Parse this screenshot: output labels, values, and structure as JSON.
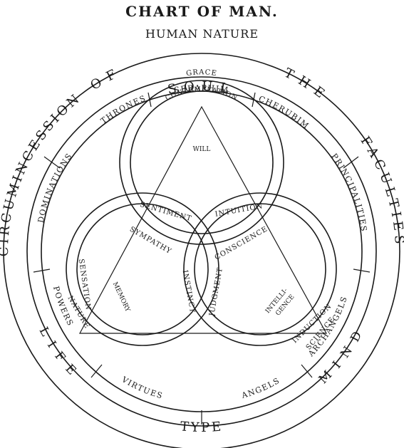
{
  "title": "CHART OF MAN.",
  "subtitle": "HUMAN NATURE",
  "outer_ring": {
    "of": "OF",
    "soul": "SOUL",
    "the": "THE",
    "circumincession": "CIRCUMINCESSION",
    "faculties": "FACULTIES",
    "life": "LIFE",
    "mind": "MIND",
    "type": "TYPE"
  },
  "hierarchy_ring": {
    "seraphim": "SERAPHIM",
    "thrones": "THRONES",
    "cherubim": "CHERUBIM",
    "dominations": "DOMINATIONS",
    "principalities": "PRINCIPALITIES",
    "powers": "POWERS",
    "archangels": "ARCHANGELS",
    "virtues": "VIRTUES",
    "angels": "ANGELS"
  },
  "circles": {
    "grace": "GRACE",
    "contemplation": "CONTEMPLATION",
    "will": "WILL",
    "sentiment": "SENTIMENT",
    "intuition": "INTUITION",
    "sympathy": "SYMPATHY",
    "conscience": "CONSCIENCE",
    "sensation": "SENSATION",
    "nature": "NATURE",
    "memory": "MEMORY",
    "instinct": "INSTINCT",
    "judgment": "JUDGMENT",
    "intelligence_line1": "INTELLI-",
    "intelligence_line2": "GENCE",
    "induction": "INDUCTION",
    "science": "SCIENCE"
  }
}
